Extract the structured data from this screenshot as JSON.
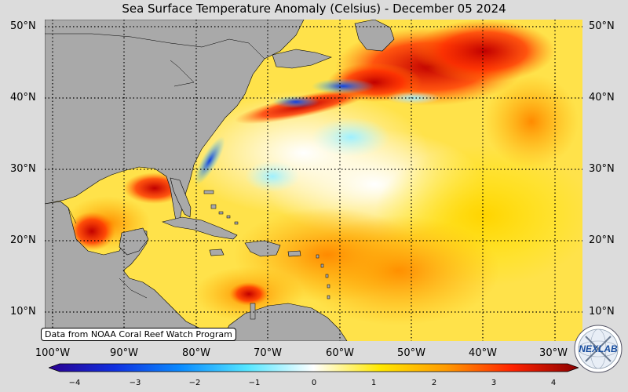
{
  "title": "Sea Surface Temperature Anomaly (Celsius) - December 05 2024",
  "source_note": "Data from NOAA Coral Reef Watch Program",
  "lat_labels": [
    "50°N",
    "40°N",
    "30°N",
    "20°N",
    "10°N"
  ],
  "lat_labels_right": [
    "50°N",
    "40°N",
    "30°N",
    "20°N",
    "10°N"
  ],
  "lon_labels": [
    "100°W",
    "90°W",
    "80°W",
    "70°W",
    "60°W",
    "50°W",
    "40°W",
    "30°W"
  ],
  "colorbar": {
    "min": -4,
    "max": 4,
    "ticks": [
      "−4",
      "−3",
      "−2",
      "−1",
      "0",
      "1",
      "2",
      "3",
      "4"
    ],
    "colors": [
      "#2a0090",
      "#1030e0",
      "#0a8cff",
      "#55e6ff",
      "#ffffff",
      "#ffe800",
      "#ff9a00",
      "#ff2200",
      "#8a0000"
    ]
  },
  "logo": {
    "text": "NEXLAB",
    "icon": "nexlab-globe-logo"
  }
}
